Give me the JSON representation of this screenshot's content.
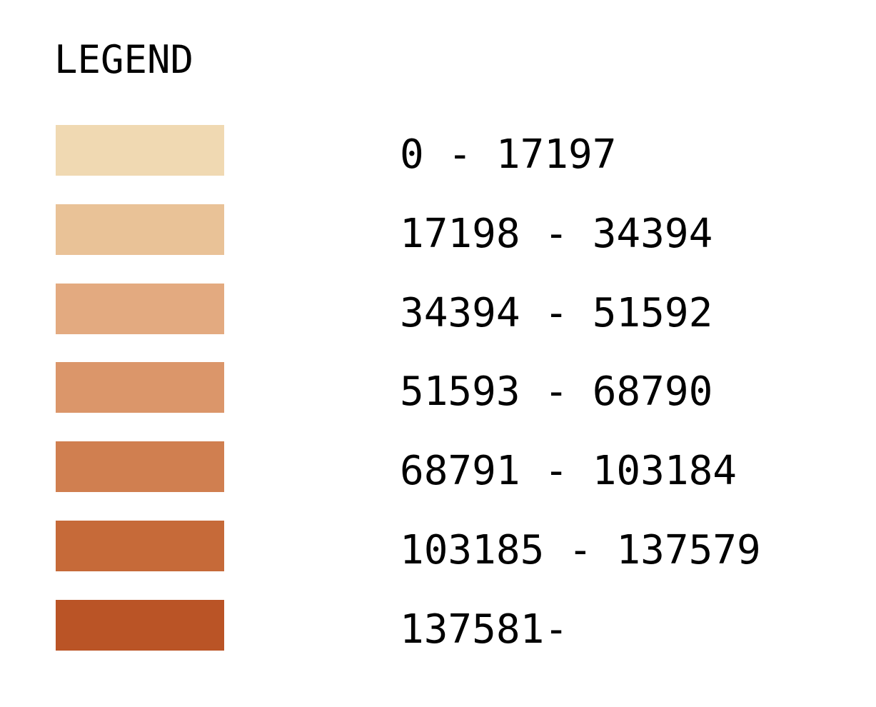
{
  "legend": {
    "title": "LEGEND",
    "items": [
      {
        "label": "0 - 17197",
        "color": "#f0d9b2"
      },
      {
        "label": "17198 - 34394",
        "color": "#e9c297"
      },
      {
        "label": "34394 - 51592",
        "color": "#e3aa80"
      },
      {
        "label": "51593 - 68790",
        "color": "#db966a"
      },
      {
        "label": "68791 - 103184",
        "color": "#d07f50"
      },
      {
        "label": "103185 - 137579",
        "color": "#c66a39"
      },
      {
        "label": "137581-",
        "color": "#ba5426"
      }
    ]
  }
}
